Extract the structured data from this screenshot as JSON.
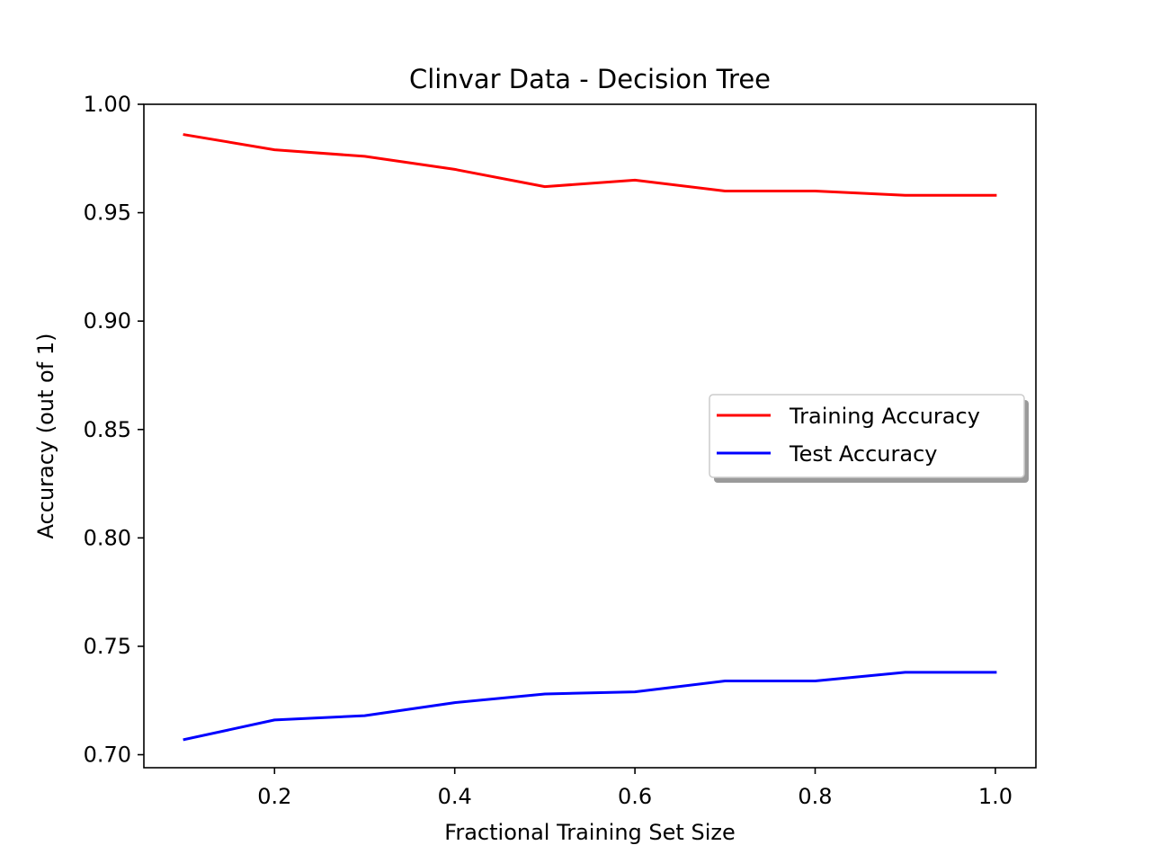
{
  "chart_data": {
    "type": "line",
    "title": "Clinvar Data - Decision Tree",
    "xlabel": "Fractional Training Set Size",
    "ylabel": "Accuracy (out of 1)",
    "xlim": [
      0.055,
      1.045
    ],
    "ylim": [
      0.694,
      1.0
    ],
    "xticks": [
      0.2,
      0.4,
      0.6,
      0.8,
      1.0
    ],
    "xtick_labels": [
      "0.2",
      "0.4",
      "0.6",
      "0.8",
      "1.0"
    ],
    "yticks": [
      0.7,
      0.75,
      0.8,
      0.85,
      0.9,
      0.95,
      1.0
    ],
    "ytick_labels": [
      "0.70",
      "0.75",
      "0.80",
      "0.85",
      "0.90",
      "0.95",
      "1.00"
    ],
    "x": [
      0.1,
      0.2,
      0.3,
      0.4,
      0.5,
      0.6,
      0.7,
      0.8,
      0.9,
      1.0
    ],
    "series": [
      {
        "name": "Training Accuracy",
        "color": "#ff0000",
        "values": [
          0.986,
          0.979,
          0.976,
          0.97,
          0.962,
          0.965,
          0.96,
          0.96,
          0.958,
          0.958
        ]
      },
      {
        "name": "Test Accuracy",
        "color": "#0000ff",
        "values": [
          0.707,
          0.716,
          0.718,
          0.724,
          0.728,
          0.729,
          0.734,
          0.734,
          0.738,
          0.738
        ]
      }
    ],
    "legend": "center-right",
    "grid": false
  }
}
